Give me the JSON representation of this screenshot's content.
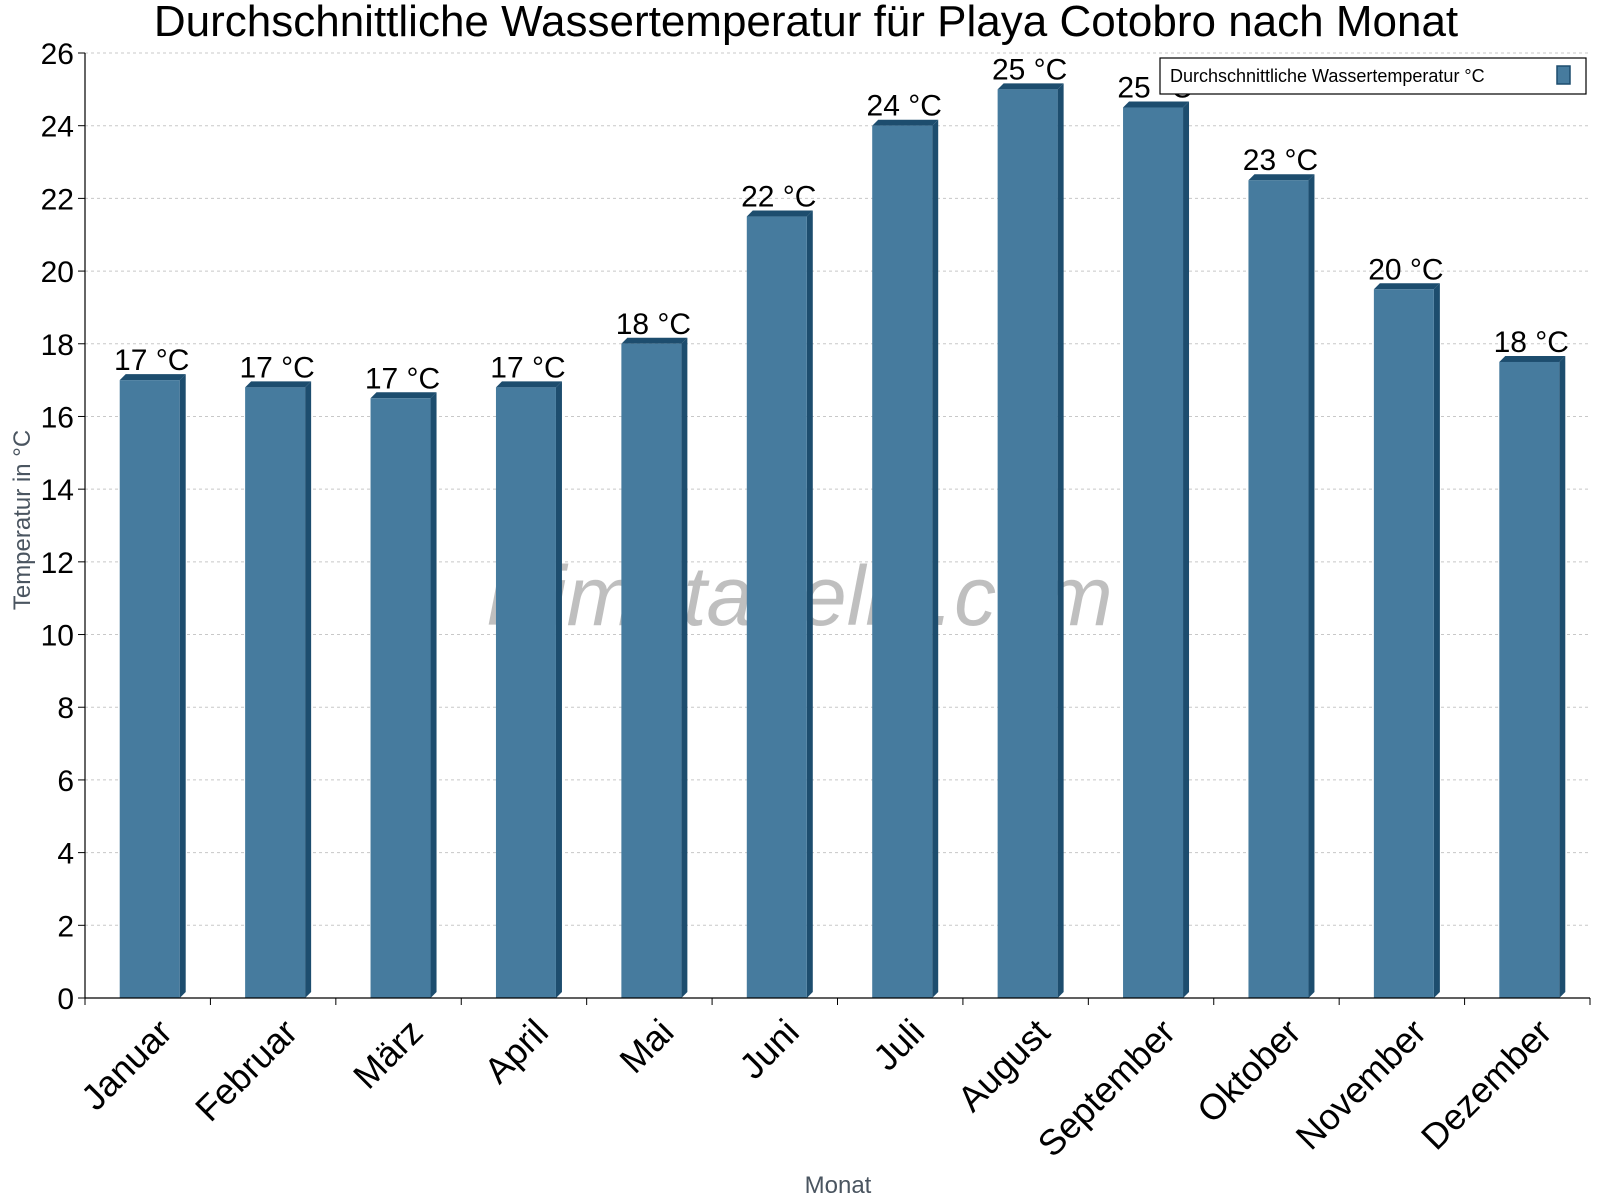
{
  "chart_data": {
    "type": "bar",
    "title": "Durchschnittliche Wassertemperatur für Playa Cotobro nach Monat",
    "xlabel": "Monat",
    "ylabel": "Temperatur in °C",
    "categories": [
      "Januar",
      "Februar",
      "März",
      "April",
      "Mai",
      "Juni",
      "Juli",
      "August",
      "September",
      "Oktober",
      "November",
      "Dezember"
    ],
    "series": [
      {
        "name": "Durchschnittliche Wassertemperatur °C",
        "values": [
          17,
          16.8,
          16.5,
          16.8,
          18,
          21.5,
          24,
          25,
          24.5,
          22.5,
          19.5,
          17.5
        ],
        "data_labels": [
          "17 °C",
          "17 °C",
          "17 °C",
          "17 °C",
          "18 °C",
          "22 °C",
          "24 °C",
          "25 °C",
          "25 °C",
          "23 °C",
          "20 °C",
          "18 °C"
        ]
      }
    ],
    "ylim": [
      0,
      26
    ],
    "yticks": [
      0,
      2,
      4,
      6,
      8,
      10,
      12,
      14,
      16,
      18,
      20,
      22,
      24,
      26
    ],
    "grid": true,
    "legend_position": "top-right",
    "colors": {
      "bar_fill": "#467b9e",
      "bar_side": "#1d4d6e",
      "grid": "#c8c8c8",
      "axis": "#000000"
    }
  },
  "watermark": "klimatabelle.com"
}
